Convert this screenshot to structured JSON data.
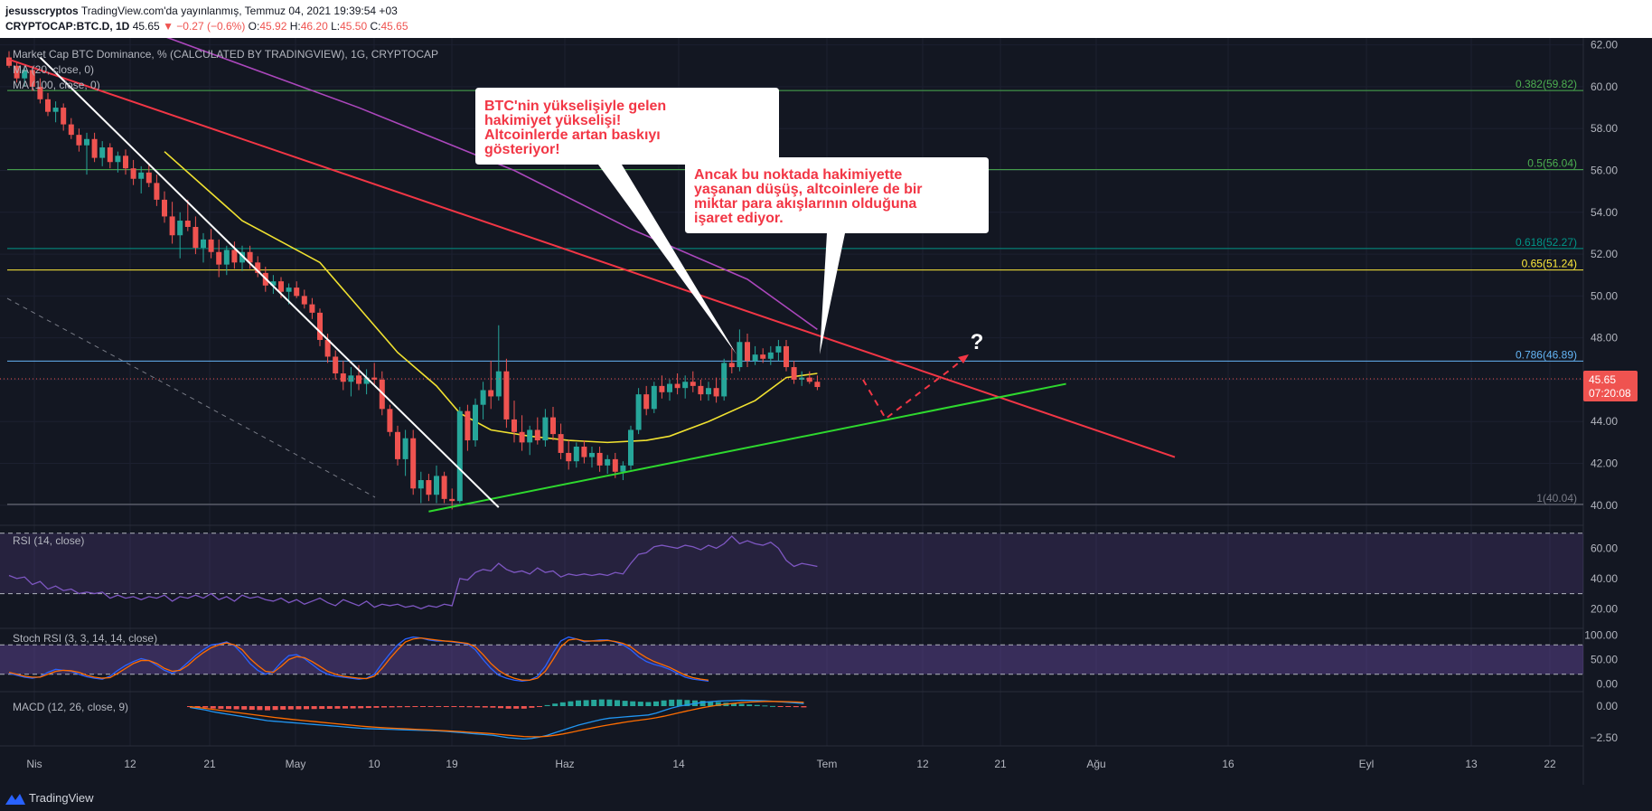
{
  "header": {
    "author": "jesusscryptos",
    "published": "TradingView.com'da yayınlanmış, Temmuz 04, 2021 19:39:54 +03",
    "symbol": "CRYPTOCAP:BTC.D, 1D",
    "last": "45.65",
    "change": "▼ −0.27 (−0.6%)",
    "open_label": "O:",
    "open": "45.92",
    "high_label": "H:",
    "high": "46.20",
    "low_label": "L:",
    "low": "45.50",
    "close_label": "C:",
    "close": "45.65"
  },
  "legends": {
    "main": "Market Cap BTC Dominance, % (CALCULATED BY TRADINGVIEW), 1G, CRYPTOCAP",
    "ma20": "MA (20, close, 0)",
    "ma100": "MA (100, close, 0)",
    "rsi": "RSI (14, close)",
    "stoch": "Stoch RSI (3, 3, 14, 14, close)",
    "macd": "MACD (12, 26, close, 9)"
  },
  "annotations": {
    "callout1": [
      "BTC'nin yükselişiyle gelen",
      "hakimiyet yükselişi!",
      "Altcoinlerde artan baskıyı",
      "gösteriyor!"
    ],
    "callout2": [
      "Ancak bu noktada hakimiyette",
      "yaşanan düşüş, altcoinlere de bir",
      "miktar para akışlarının olduğuna",
      "işaret ediyor."
    ],
    "question": "?"
  },
  "price_badge": {
    "value": "45.65",
    "countdown": "07:20:08",
    "color": "#ef5350"
  },
  "footer": {
    "brand": "TradingView"
  },
  "colors": {
    "up": "#26a69a",
    "down": "#ef5350",
    "ma20": "#f0e130",
    "ma100": "#ab47bc",
    "trend_red": "#f23645",
    "trend_green": "#2ed82e"
  },
  "chart_data": {
    "type": "candlestick",
    "y_axis": {
      "ticks": [
        "62.00",
        "60.00",
        "58.00",
        "56.00",
        "54.00",
        "52.00",
        "50.00",
        "48.00",
        "46.00",
        "44.00",
        "42.00",
        "40.00"
      ],
      "range": [
        39.3,
        62.2
      ]
    },
    "x_axis": {
      "ticks": [
        "Nis",
        "12",
        "21",
        "May",
        "10",
        "19",
        "Haz",
        "14",
        "Tem",
        "12",
        "21",
        "Ağu",
        "16",
        "Eyl",
        "13",
        "22"
      ]
    },
    "fib_levels": [
      {
        "label": "0.382(59.82)",
        "value": 59.82,
        "color": "#4caf50"
      },
      {
        "label": "0.5(56.04)",
        "value": 56.04,
        "color": "#4caf50"
      },
      {
        "label": "0.618(52.27)",
        "value": 52.27,
        "color": "#009688"
      },
      {
        "label": "0.65(51.24)",
        "value": 51.24,
        "color": "#ffeb3b"
      },
      {
        "label": "0.786(46.89)",
        "value": 46.89,
        "color": "#64b5f6"
      },
      {
        "label": "1(40.04)",
        "value": 40.04,
        "color": "#787b86"
      }
    ],
    "candles": [
      [
        61.4,
        61.7,
        60.9,
        61.0
      ],
      [
        61.0,
        61.2,
        60.2,
        60.4
      ],
      [
        60.4,
        61.0,
        60.0,
        60.8
      ],
      [
        60.8,
        61.0,
        59.8,
        60.0
      ],
      [
        60.0,
        60.4,
        59.2,
        59.4
      ],
      [
        59.4,
        59.7,
        58.6,
        58.8
      ],
      [
        58.8,
        59.3,
        58.3,
        59.0
      ],
      [
        59.0,
        59.2,
        57.9,
        58.2
      ],
      [
        58.2,
        58.5,
        57.5,
        57.7
      ],
      [
        57.7,
        58.0,
        56.9,
        57.2
      ],
      [
        57.2,
        57.8,
        55.8,
        57.5
      ],
      [
        57.5,
        57.8,
        56.4,
        56.6
      ],
      [
        56.6,
        57.4,
        56.2,
        57.1
      ],
      [
        57.1,
        57.3,
        56.1,
        56.4
      ],
      [
        56.4,
        56.9,
        55.9,
        56.7
      ],
      [
        56.7,
        57.0,
        55.8,
        56.1
      ],
      [
        56.1,
        56.5,
        55.3,
        55.6
      ],
      [
        55.6,
        56.2,
        54.9,
        55.9
      ],
      [
        55.9,
        56.3,
        55.2,
        55.4
      ],
      [
        55.4,
        55.8,
        54.3,
        54.6
      ],
      [
        54.6,
        55.0,
        53.5,
        53.8
      ],
      [
        53.8,
        54.5,
        52.5,
        52.9
      ],
      [
        52.9,
        54.0,
        51.8,
        53.6
      ],
      [
        53.6,
        54.6,
        53.1,
        53.3
      ],
      [
        53.3,
        53.8,
        52.0,
        52.3
      ],
      [
        52.3,
        53.0,
        51.6,
        52.7
      ],
      [
        52.7,
        53.2,
        51.8,
        52.1
      ],
      [
        52.1,
        52.7,
        50.9,
        51.5
      ],
      [
        51.5,
        52.4,
        51.0,
        52.2
      ],
      [
        52.2,
        52.6,
        51.3,
        51.6
      ],
      [
        51.6,
        52.4,
        51.2,
        52.1
      ],
      [
        52.1,
        52.4,
        51.3,
        51.6
      ],
      [
        51.6,
        51.9,
        50.9,
        51.1
      ],
      [
        51.1,
        51.4,
        50.2,
        50.5
      ],
      [
        50.5,
        51.0,
        50.1,
        50.7
      ],
      [
        50.7,
        50.9,
        49.9,
        50.2
      ],
      [
        50.2,
        50.6,
        49.6,
        50.4
      ],
      [
        50.4,
        50.7,
        49.9,
        50.0
      ],
      [
        50.0,
        50.3,
        49.4,
        49.6
      ],
      [
        49.6,
        49.9,
        48.9,
        49.2
      ],
      [
        49.2,
        49.4,
        47.6,
        47.9
      ],
      [
        47.9,
        48.2,
        46.8,
        47.1
      ],
      [
        47.1,
        47.4,
        46.0,
        46.3
      ],
      [
        46.3,
        46.9,
        45.5,
        45.9
      ],
      [
        45.9,
        46.6,
        45.2,
        46.2
      ],
      [
        46.2,
        46.7,
        45.5,
        45.8
      ],
      [
        45.8,
        46.5,
        45.3,
        46.1
      ],
      [
        46.1,
        46.8,
        45.7,
        46.0
      ],
      [
        46.0,
        46.4,
        44.3,
        44.6
      ],
      [
        44.6,
        44.8,
        43.3,
        43.5
      ],
      [
        43.5,
        43.8,
        41.9,
        42.2
      ],
      [
        42.2,
        43.6,
        41.4,
        43.2
      ],
      [
        43.2,
        43.6,
        40.5,
        40.8
      ],
      [
        40.8,
        41.6,
        40.1,
        41.2
      ],
      [
        41.2,
        41.5,
        40.2,
        40.5
      ],
      [
        40.5,
        41.9,
        40.1,
        41.4
      ],
      [
        41.4,
        41.6,
        40.1,
        40.3
      ],
      [
        40.3,
        40.8,
        39.8,
        40.2
      ],
      [
        40.2,
        44.7,
        40.1,
        44.5
      ],
      [
        44.5,
        44.8,
        42.6,
        43.1
      ],
      [
        43.1,
        45.1,
        42.8,
        44.8
      ],
      [
        44.8,
        45.9,
        44.1,
        45.5
      ],
      [
        45.5,
        46.9,
        44.6,
        45.2
      ],
      [
        45.2,
        48.6,
        45.0,
        46.4
      ],
      [
        46.4,
        47.0,
        43.7,
        44.1
      ],
      [
        44.1,
        45.0,
        43.0,
        43.5
      ],
      [
        43.5,
        44.3,
        42.6,
        43.0
      ],
      [
        43.0,
        43.8,
        42.4,
        43.6
      ],
      [
        43.6,
        44.2,
        42.9,
        43.1
      ],
      [
        43.1,
        44.6,
        42.8,
        44.2
      ],
      [
        44.2,
        44.7,
        43.1,
        43.4
      ],
      [
        43.4,
        43.9,
        42.2,
        42.5
      ],
      [
        42.5,
        43.1,
        41.7,
        42.1
      ],
      [
        42.1,
        43.0,
        41.8,
        42.8
      ],
      [
        42.8,
        43.1,
        42.0,
        42.3
      ],
      [
        42.3,
        42.8,
        41.8,
        42.5
      ],
      [
        42.5,
        42.8,
        41.6,
        41.9
      ],
      [
        41.9,
        42.4,
        41.5,
        42.2
      ],
      [
        42.2,
        42.5,
        41.3,
        41.6
      ],
      [
        41.6,
        42.1,
        41.2,
        41.9
      ],
      [
        41.9,
        43.8,
        41.7,
        43.6
      ],
      [
        43.6,
        45.6,
        43.4,
        45.3
      ],
      [
        45.3,
        45.7,
        44.3,
        44.6
      ],
      [
        44.6,
        45.9,
        44.4,
        45.7
      ],
      [
        45.7,
        46.2,
        45.1,
        45.4
      ],
      [
        45.4,
        46.0,
        45.0,
        45.8
      ],
      [
        45.8,
        46.3,
        45.3,
        45.6
      ],
      [
        45.6,
        46.2,
        45.1,
        45.9
      ],
      [
        45.9,
        46.4,
        45.4,
        45.7
      ],
      [
        45.7,
        46.0,
        45.0,
        45.3
      ],
      [
        45.3,
        45.9,
        45.0,
        45.6
      ],
      [
        45.6,
        46.1,
        44.9,
        45.2
      ],
      [
        45.2,
        47.0,
        45.0,
        46.8
      ],
      [
        46.8,
        47.5,
        46.3,
        46.6
      ],
      [
        46.6,
        48.4,
        46.4,
        47.8
      ],
      [
        47.8,
        48.2,
        46.6,
        46.9
      ],
      [
        46.9,
        47.6,
        46.7,
        47.2
      ],
      [
        47.2,
        47.5,
        46.8,
        47.0
      ],
      [
        47.0,
        47.6,
        46.7,
        47.3
      ],
      [
        47.3,
        47.9,
        46.9,
        47.6
      ],
      [
        47.6,
        47.9,
        46.4,
        46.6
      ],
      [
        46.6,
        46.9,
        45.8,
        46.0
      ],
      [
        46.0,
        46.4,
        45.7,
        46.1
      ],
      [
        46.1,
        46.4,
        45.8,
        45.9
      ],
      [
        45.9,
        46.2,
        45.5,
        45.65
      ]
    ],
    "series": [
      {
        "name": "MA (20, close, 0)",
        "color": "#f0e130",
        "values": [
          [
            20,
            56.9
          ],
          [
            30,
            53.6
          ],
          [
            40,
            51.6
          ],
          [
            50,
            47.3
          ],
          [
            55,
            45.7
          ],
          [
            58,
            44.4
          ],
          [
            62,
            43.6
          ],
          [
            67,
            43.3
          ],
          [
            72,
            43.1
          ],
          [
            77,
            43.0
          ],
          [
            82,
            43.1
          ],
          [
            85,
            43.3
          ],
          [
            90,
            44.0
          ],
          [
            96,
            45.0
          ],
          [
            100,
            46.1
          ],
          [
            104,
            46.3
          ]
        ]
      },
      {
        "name": "MA (100, close, 0)",
        "color": "#ab47bc",
        "values": [
          [
            20,
            62.4
          ],
          [
            45,
            59.0
          ],
          [
            65,
            56.0
          ],
          [
            80,
            53.2
          ],
          [
            95,
            50.8
          ],
          [
            104,
            48.4
          ]
        ]
      }
    ],
    "trendlines": [
      {
        "color": "#f23645",
        "from": [
          0,
          61.3
        ],
        "to": [
          150,
          42.3
        ]
      },
      {
        "color": "#2ed82e",
        "from": [
          54,
          39.7
        ],
        "to": [
          136,
          45.8
        ]
      },
      {
        "color": "#ffffff",
        "from": [
          4,
          61.4
        ],
        "to": [
          63,
          39.9
        ]
      }
    ],
    "rsi": {
      "range": [
        10,
        74
      ],
      "ticks": [
        "60.00",
        "40.00",
        "20.00"
      ],
      "bands": [
        70,
        30
      ],
      "values": [
        42,
        40,
        41,
        36,
        38,
        33,
        35,
        32,
        33,
        30,
        31,
        30,
        31,
        27,
        29,
        27,
        28,
        26,
        28,
        27,
        29,
        25,
        28,
        27,
        29,
        27,
        30,
        26,
        28,
        25,
        29,
        27,
        28,
        26,
        25,
        27,
        24,
        26,
        23,
        25,
        27,
        24,
        22,
        26,
        24,
        22,
        25,
        21,
        23,
        22,
        23,
        21,
        22,
        20,
        22,
        21,
        23,
        22,
        40,
        39,
        44,
        46,
        45,
        50,
        46,
        44,
        45,
        43,
        47,
        44,
        45,
        41,
        43,
        42,
        43,
        42,
        43,
        42,
        44,
        43,
        50,
        56,
        57,
        61,
        62,
        61,
        60,
        62,
        61,
        59,
        62,
        60,
        63,
        68,
        63,
        65,
        63,
        62,
        64,
        60,
        52,
        48,
        50,
        49,
        48
      ]
    },
    "stoch_rsi": {
      "range": [
        -10,
        110
      ],
      "ticks": [
        "100.00",
        "50.00",
        "0.00"
      ],
      "bands": [
        80,
        20
      ],
      "k": [
        22,
        18,
        14,
        12,
        15,
        24,
        30,
        28,
        26,
        20,
        15,
        12,
        10,
        16,
        28,
        38,
        46,
        52,
        48,
        38,
        28,
        22,
        30,
        44,
        58,
        70,
        80,
        82,
        86,
        78,
        62,
        42,
        28,
        20,
        26,
        44,
        58,
        60,
        52,
        40,
        28,
        20,
        16,
        14,
        12,
        10,
        12,
        20,
        42,
        62,
        80,
        92,
        96,
        94,
        90,
        88,
        88,
        86,
        84,
        82,
        70,
        50,
        32,
        18,
        12,
        8,
        6,
        8,
        16,
        36,
        64,
        88,
        96,
        92,
        86,
        88,
        90,
        90,
        86,
        80,
        70,
        56,
        46,
        40,
        36,
        30,
        22,
        14,
        10,
        8,
        6
      ],
      "d": [
        24,
        20,
        16,
        14,
        14,
        20,
        26,
        28,
        27,
        24,
        18,
        14,
        12,
        13,
        22,
        32,
        42,
        48,
        48,
        42,
        32,
        26,
        28,
        38,
        52,
        64,
        74,
        80,
        84,
        80,
        70,
        52,
        38,
        26,
        24,
        36,
        50,
        56,
        54,
        46,
        36,
        26,
        20,
        16,
        14,
        12,
        11,
        16,
        32,
        52,
        70,
        86,
        92,
        94,
        92,
        90,
        88,
        87,
        85,
        83,
        76,
        60,
        42,
        28,
        18,
        12,
        8,
        8,
        12,
        26,
        50,
        76,
        90,
        92,
        88,
        88,
        88,
        89,
        87,
        83,
        76,
        64,
        54,
        46,
        40,
        34,
        26,
        18,
        13,
        10,
        8
      ]
    },
    "macd": {
      "range": [
        -3.0,
        1.0
      ],
      "ticks": [
        "0.00",
        "−2.50"
      ],
      "macd_line": [
        -0.1,
        -0.2,
        -0.3,
        -0.45,
        -0.55,
        -0.65,
        -0.75,
        -0.85,
        -0.95,
        -1.05,
        -1.15,
        -1.2,
        -1.25,
        -1.3,
        -1.35,
        -1.4,
        -1.45,
        -1.5,
        -1.55,
        -1.6,
        -1.65,
        -1.7,
        -1.75,
        -1.78,
        -1.8,
        -1.82,
        -1.84,
        -1.86,
        -1.88,
        -1.9,
        -1.92,
        -1.94,
        -1.96,
        -2.0,
        -2.05,
        -2.1,
        -2.15,
        -2.2,
        -2.25,
        -2.3,
        -2.4,
        -2.5,
        -2.55,
        -2.6,
        -2.55,
        -2.45,
        -2.3,
        -2.1,
        -1.9,
        -1.7,
        -1.5,
        -1.35,
        -1.2,
        -1.05,
        -0.95,
        -0.9,
        -0.85,
        -0.8,
        -0.75,
        -0.7,
        -0.55,
        -0.35,
        -0.15,
        0.0,
        0.1,
        0.2,
        0.3,
        0.35,
        0.4,
        0.42,
        0.44,
        0.46,
        0.45,
        0.44,
        0.42,
        0.38,
        0.34,
        0.3,
        0.25,
        0.2
      ],
      "signal_line": [
        -0.05,
        -0.1,
        -0.18,
        -0.26,
        -0.34,
        -0.42,
        -0.5,
        -0.58,
        -0.66,
        -0.74,
        -0.82,
        -0.9,
        -0.97,
        -1.04,
        -1.1,
        -1.16,
        -1.22,
        -1.28,
        -1.34,
        -1.4,
        -1.46,
        -1.52,
        -1.58,
        -1.63,
        -1.67,
        -1.71,
        -1.74,
        -1.77,
        -1.8,
        -1.83,
        -1.86,
        -1.89,
        -1.92,
        -1.95,
        -1.98,
        -2.02,
        -2.06,
        -2.1,
        -2.14,
        -2.18,
        -2.24,
        -2.3,
        -2.35,
        -2.4,
        -2.42,
        -2.42,
        -2.38,
        -2.3,
        -2.2,
        -2.08,
        -1.95,
        -1.82,
        -1.7,
        -1.58,
        -1.47,
        -1.37,
        -1.27,
        -1.18,
        -1.1,
        -1.02,
        -0.92,
        -0.8,
        -0.66,
        -0.52,
        -0.38,
        -0.25,
        -0.12,
        -0.02,
        0.08,
        0.15,
        0.22,
        0.28,
        0.32,
        0.35,
        0.37,
        0.37,
        0.36,
        0.35,
        0.33,
        0.3
      ],
      "histogram": [
        -0.05,
        -0.1,
        -0.12,
        -0.19,
        -0.21,
        -0.23,
        -0.25,
        -0.27,
        -0.29,
        -0.31,
        -0.33,
        -0.3,
        -0.28,
        -0.26,
        -0.25,
        -0.24,
        -0.23,
        -0.22,
        -0.21,
        -0.2,
        -0.19,
        -0.18,
        -0.17,
        -0.15,
        -0.13,
        -0.11,
        -0.1,
        -0.09,
        -0.08,
        -0.07,
        -0.06,
        -0.05,
        -0.04,
        -0.05,
        -0.07,
        -0.08,
        -0.09,
        -0.1,
        -0.11,
        -0.12,
        -0.16,
        -0.2,
        -0.2,
        -0.2,
        -0.13,
        -0.03,
        0.08,
        0.2,
        0.3,
        0.38,
        0.45,
        0.47,
        0.5,
        0.53,
        0.52,
        0.47,
        0.42,
        0.38,
        0.35,
        0.32,
        0.37,
        0.45,
        0.51,
        0.52,
        0.48,
        0.45,
        0.42,
        0.37,
        0.32,
        0.27,
        0.22,
        0.18,
        0.13,
        0.09,
        0.05,
        0.01,
        -0.02,
        -0.05,
        -0.08,
        -0.1
      ]
    }
  }
}
